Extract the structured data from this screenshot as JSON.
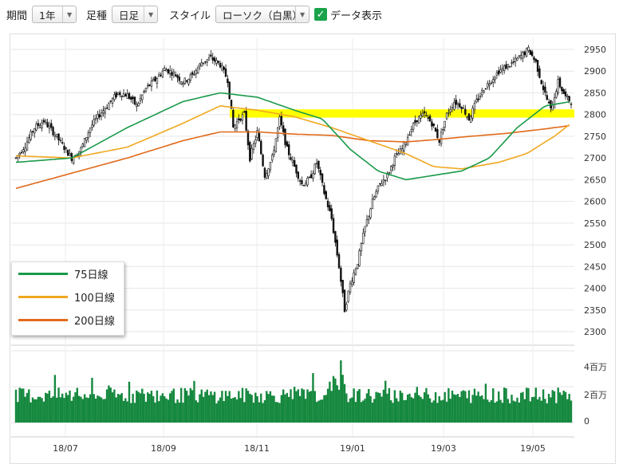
{
  "toolbar": {
    "period_label": "期間",
    "period_value": "1年",
    "bar_label": "足種",
    "bar_value": "日足",
    "style_label": "スタイル",
    "style_value": "ローソク（白黒）",
    "data_label": "データ表示",
    "data_checked": true
  },
  "colors": {
    "ma75": "#1a9a4a",
    "ma100": "#f0a820",
    "ma200": "#e26a1a",
    "highlight": "#ffff00",
    "volume": "#15883e"
  },
  "legend": [
    {
      "label": "75日線",
      "color": "#1a9a4a"
    },
    {
      "label": "100日線",
      "color": "#f0a820"
    },
    {
      "label": "200日線",
      "color": "#e26a1a"
    }
  ],
  "chart_data": {
    "type": "line",
    "price_axis": {
      "ticks": [
        "2950",
        "2900",
        "2850",
        "2800",
        "2750",
        "2700",
        "2650",
        "2600",
        "2550",
        "2500",
        "2450",
        "2400",
        "2350",
        "2300"
      ],
      "range": [
        2280,
        2970
      ]
    },
    "volume_axis": {
      "ticks": [
        "4百万",
        "2百万",
        "0"
      ],
      "range": [
        0,
        5
      ]
    },
    "x_ticks": [
      "18/07",
      "18/09",
      "18/11",
      "19/01",
      "19/03",
      "19/05"
    ],
    "highlight_band": [
      2793,
      2812
    ],
    "price_path": [
      [
        0,
        2700
      ],
      [
        5,
        2730
      ],
      [
        10,
        2770
      ],
      [
        15,
        2785
      ],
      [
        20,
        2760
      ],
      [
        25,
        2730
      ],
      [
        30,
        2700
      ],
      [
        35,
        2720
      ],
      [
        40,
        2770
      ],
      [
        45,
        2800
      ],
      [
        50,
        2825
      ],
      [
        55,
        2850
      ],
      [
        60,
        2845
      ],
      [
        65,
        2820
      ],
      [
        70,
        2860
      ],
      [
        75,
        2880
      ],
      [
        80,
        2905
      ],
      [
        85,
        2895
      ],
      [
        90,
        2875
      ],
      [
        95,
        2890
      ],
      [
        100,
        2920
      ],
      [
        105,
        2930
      ],
      [
        110,
        2915
      ],
      [
        114,
        2880
      ],
      [
        117,
        2770
      ],
      [
        120,
        2790
      ],
      [
        123,
        2800
      ],
      [
        126,
        2700
      ],
      [
        130,
        2760
      ],
      [
        134,
        2660
      ],
      [
        138,
        2700
      ],
      [
        142,
        2790
      ],
      [
        146,
        2720
      ],
      [
        150,
        2680
      ],
      [
        154,
        2640
      ],
      [
        158,
        2650
      ],
      [
        162,
        2690
      ],
      [
        166,
        2620
      ],
      [
        170,
        2560
      ],
      [
        174,
        2450
      ],
      [
        177,
        2350
      ],
      [
        180,
        2410
      ],
      [
        184,
        2460
      ],
      [
        188,
        2540
      ],
      [
        192,
        2600
      ],
      [
        196,
        2640
      ],
      [
        200,
        2660
      ],
      [
        204,
        2700
      ],
      [
        208,
        2720
      ],
      [
        212,
        2760
      ],
      [
        216,
        2790
      ],
      [
        220,
        2800
      ],
      [
        224,
        2780
      ],
      [
        228,
        2740
      ],
      [
        232,
        2800
      ],
      [
        236,
        2830
      ],
      [
        240,
        2820
      ],
      [
        244,
        2790
      ],
      [
        248,
        2830
      ],
      [
        252,
        2860
      ],
      [
        256,
        2880
      ],
      [
        260,
        2900
      ],
      [
        264,
        2910
      ],
      [
        268,
        2920
      ],
      [
        272,
        2935
      ],
      [
        276,
        2950
      ],
      [
        280,
        2920
      ],
      [
        284,
        2860
      ],
      [
        288,
        2810
      ],
      [
        292,
        2875
      ],
      [
        296,
        2840
      ],
      [
        299,
        2830
      ]
    ],
    "ma75": [
      [
        0,
        2690
      ],
      [
        30,
        2700
      ],
      [
        60,
        2770
      ],
      [
        90,
        2830
      ],
      [
        110,
        2850
      ],
      [
        130,
        2840
      ],
      [
        150,
        2810
      ],
      [
        165,
        2790
      ],
      [
        180,
        2720
      ],
      [
        195,
        2670
      ],
      [
        210,
        2650
      ],
      [
        225,
        2660
      ],
      [
        240,
        2670
      ],
      [
        255,
        2700
      ],
      [
        270,
        2770
      ],
      [
        285,
        2820
      ],
      [
        299,
        2830
      ]
    ],
    "ma100": [
      [
        0,
        2705
      ],
      [
        30,
        2700
      ],
      [
        60,
        2725
      ],
      [
        90,
        2780
      ],
      [
        110,
        2820
      ],
      [
        130,
        2810
      ],
      [
        150,
        2795
      ],
      [
        170,
        2770
      ],
      [
        190,
        2740
      ],
      [
        210,
        2710
      ],
      [
        225,
        2680
      ],
      [
        240,
        2675
      ],
      [
        260,
        2690
      ],
      [
        275,
        2710
      ],
      [
        290,
        2750
      ],
      [
        299,
        2780
      ]
    ],
    "ma200": [
      [
        0,
        2630
      ],
      [
        30,
        2665
      ],
      [
        60,
        2700
      ],
      [
        90,
        2740
      ],
      [
        110,
        2760
      ],
      [
        130,
        2760
      ],
      [
        150,
        2755
      ],
      [
        170,
        2752
      ],
      [
        190,
        2740
      ],
      [
        210,
        2737
      ],
      [
        225,
        2742
      ],
      [
        245,
        2750
      ],
      [
        265,
        2757
      ],
      [
        285,
        2767
      ],
      [
        299,
        2775
      ]
    ],
    "volume_seed": 7
  }
}
